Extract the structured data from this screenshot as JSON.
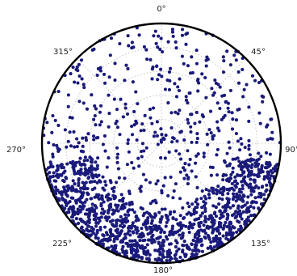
{
  "chart_data": {
    "type": "scatter",
    "projection": "polar",
    "title": "",
    "xlabel": "",
    "ylabel": "",
    "theta_direction": "clockwise",
    "theta_zero_location": "top",
    "angular_ticks": [
      "0°",
      "45°",
      "90°",
      "135°",
      "180°",
      "225°",
      "270°",
      "315°"
    ],
    "radial_grid_count": 4,
    "grid": true,
    "marker_color": "#1a1a7a",
    "rlim": [
      0,
      1
    ],
    "series": [
      {
        "region": "upper hemisphere scatter",
        "approx_point_count": 620,
        "r_range": [
          0.0,
          1.0
        ],
        "theta_range_deg": [
          0,
          360
        ],
        "note_visible_density": "dense near outer rim and sparse near center"
      },
      {
        "region": "lower crescent band",
        "approx_point_count": 1100,
        "r_range": [
          0.55,
          1.0
        ],
        "theta_range_deg": [
          100,
          260
        ],
        "note_visible_density": "very dense"
      }
    ]
  }
}
